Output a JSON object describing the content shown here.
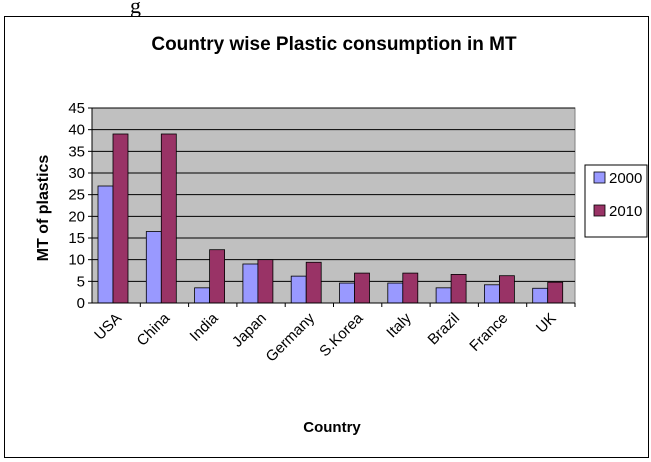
{
  "caption": "g",
  "chart_data": {
    "type": "bar",
    "title": "Country wise Plastic consumption in MT",
    "xlabel": "Country",
    "ylabel": "MT of plastics",
    "categories": [
      "USA",
      "China",
      "India",
      "Japan",
      "Germany",
      "S.Korea",
      "Italy",
      "Brazil",
      "France",
      "UK"
    ],
    "series": [
      {
        "name": "2000",
        "values": [
          27,
          16.5,
          3.5,
          9,
          6.2,
          4.6,
          4.6,
          3.5,
          4.2,
          3.4
        ],
        "color": "#9999ff"
      },
      {
        "name": "2010",
        "values": [
          39,
          39,
          12.3,
          10,
          9.4,
          6.9,
          6.9,
          6.6,
          6.3,
          4.8
        ],
        "color": "#993366"
      }
    ],
    "ylim": [
      0,
      45
    ],
    "yticks": [
      0,
      5,
      10,
      15,
      20,
      25,
      30,
      35,
      40,
      45
    ],
    "grid": true,
    "legend": "right",
    "plot_background": "#c0c0c0"
  }
}
